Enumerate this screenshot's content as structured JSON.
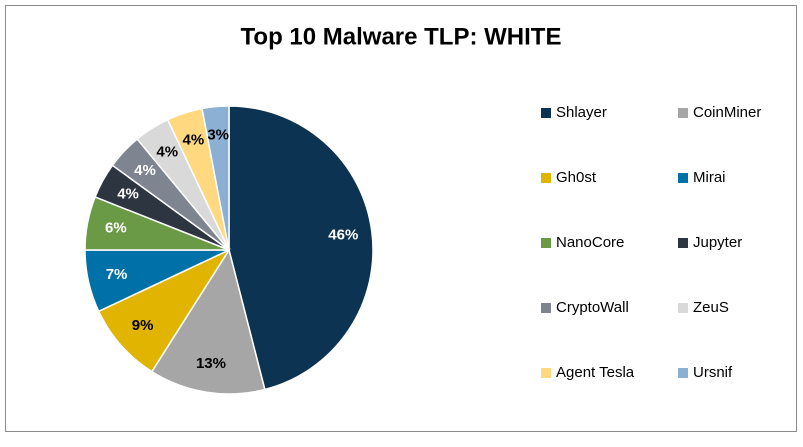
{
  "chart_data": {
    "type": "pie",
    "title": "Top 10 Malware TLP: WHITE",
    "categories": [
      "Shlayer",
      "CoinMiner",
      "Gh0st",
      "Mirai",
      "NanoCore",
      "Jupyter",
      "CryptoWall",
      "ZeuS",
      "Agent Tesla",
      "Ursnif"
    ],
    "values": [
      46,
      13,
      9,
      7,
      6,
      4,
      4,
      4,
      4,
      3
    ],
    "value_labels": [
      "46%",
      "13%",
      "9%",
      "7%",
      "6%",
      "4%",
      "4%",
      "4%",
      "4%",
      "3%"
    ],
    "colors": [
      "#0d3352",
      "#a6a6a6",
      "#e0b400",
      "#0070a8",
      "#6a9a46",
      "#2d3540",
      "#7f8590",
      "#d9d9d9",
      "#ffd880",
      "#8bb0d4"
    ],
    "legend": "right"
  }
}
